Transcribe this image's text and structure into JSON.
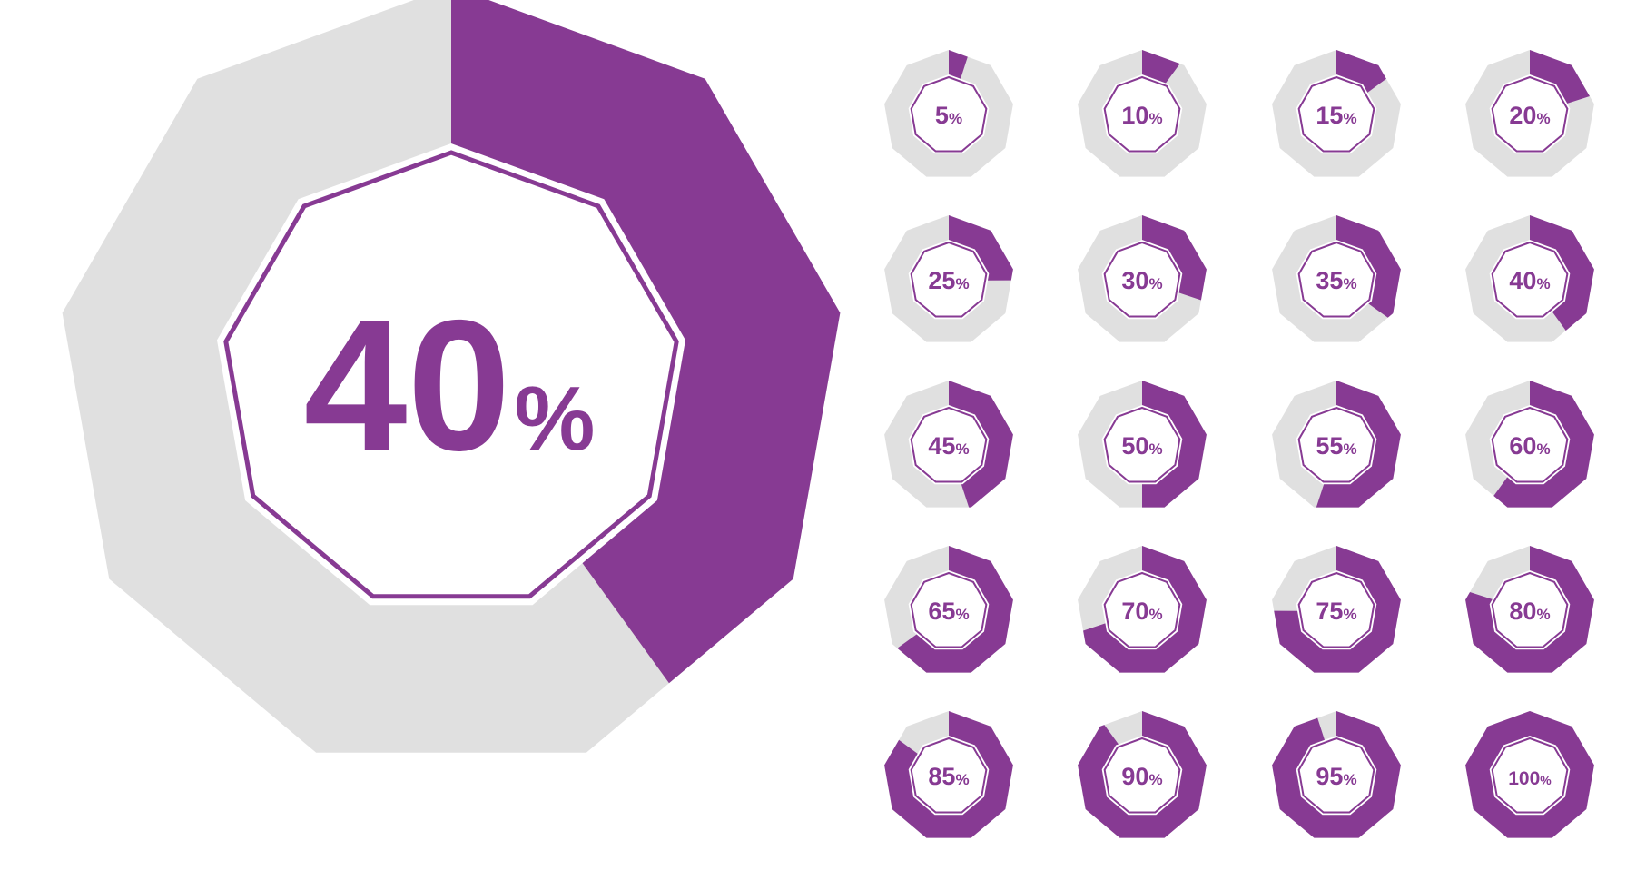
{
  "colors": {
    "fill": "#873a93",
    "track": "#e0e0e0",
    "background": "#ffffff"
  },
  "main": {
    "value": 40,
    "number_label": "40",
    "symbol_label": "%"
  },
  "chart_data": {
    "type": "pie",
    "shape": "nonagon-donut",
    "title": "",
    "main_value": 40,
    "values": [
      5,
      10,
      15,
      20,
      25,
      30,
      35,
      40,
      45,
      50,
      55,
      60,
      65,
      70,
      75,
      80,
      85,
      90,
      95,
      100
    ],
    "labels": [
      "5",
      "10",
      "15",
      "20",
      "25",
      "30",
      "35",
      "40",
      "45",
      "50",
      "55",
      "60",
      "65",
      "70",
      "75",
      "80",
      "85",
      "90",
      "95",
      "100"
    ],
    "unit": "%"
  }
}
